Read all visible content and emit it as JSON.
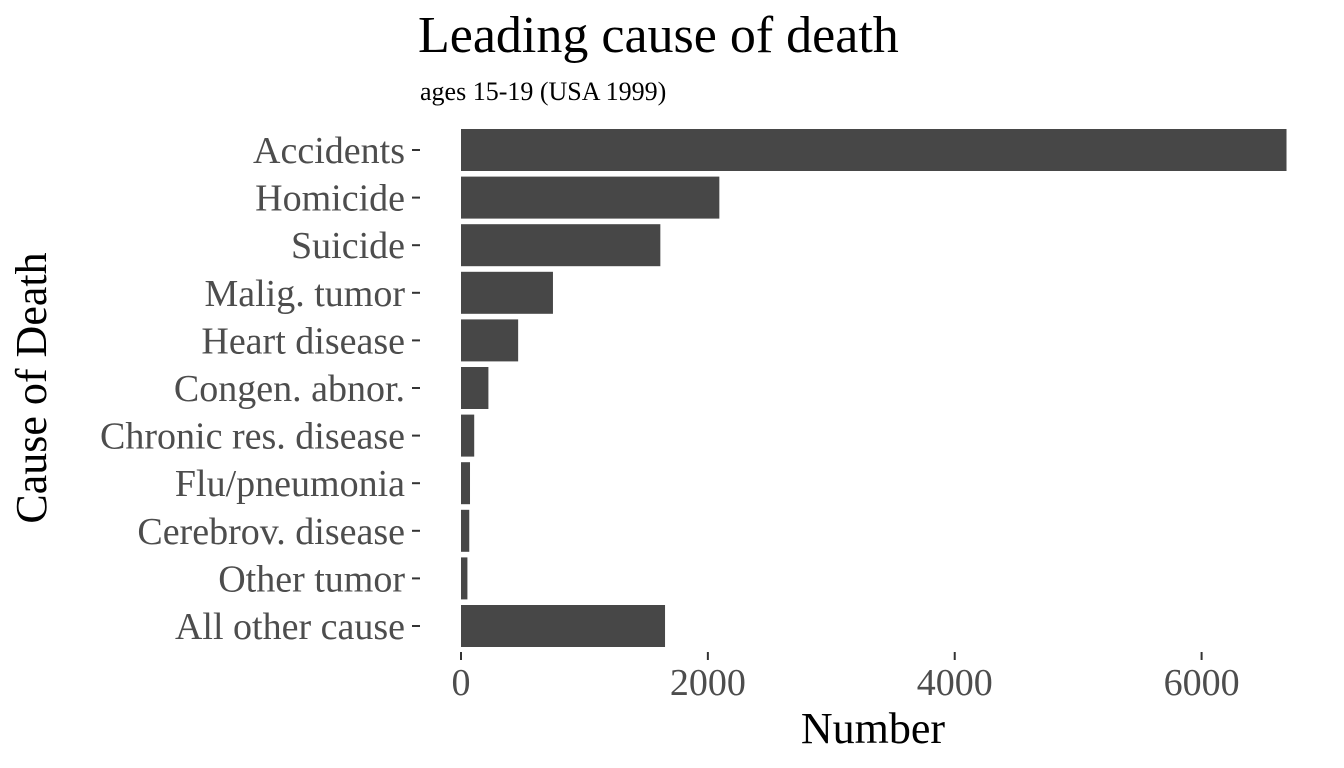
{
  "chart_data": {
    "type": "bar",
    "orientation": "horizontal",
    "title": "Leading cause of death",
    "subtitle": "ages 15-19 (USA 1999)",
    "xlabel": "Number",
    "ylabel": "Cause of Death",
    "categories": [
      "Accidents",
      "Homicide",
      "Suicide",
      "Malig. tumor",
      "Heart disease",
      "Congen. abnor.",
      "Chronic res. disease",
      "Flu/pneumonia",
      "Cerebrov. disease",
      "Other tumor",
      "All other cause"
    ],
    "values": [
      6688,
      2093,
      1615,
      745,
      463,
      222,
      107,
      73,
      67,
      52,
      1653
    ],
    "xlim": [
      0,
      6700
    ],
    "x_ticks": [
      0,
      2000,
      4000,
      6000
    ],
    "x_tick_labels": [
      "0",
      "2000",
      "4000",
      "6000"
    ],
    "bar_color": "#474747",
    "grid": false,
    "legend": "none"
  }
}
